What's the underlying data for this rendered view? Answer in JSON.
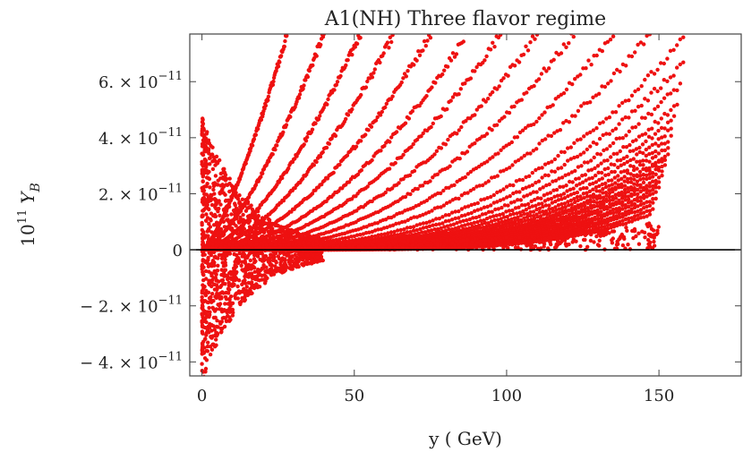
{
  "chart_data": {
    "type": "scatter",
    "title": "A1(NH) Three flavor regime",
    "xlabel": "y ( GeV)",
    "ylabel": {
      "prefix": "10",
      "prefix_exp": "11",
      "symbol": "Y",
      "symbol_sub": "B"
    },
    "xlim": [
      -4,
      177
    ],
    "ylim": [
      -4.5e-11,
      7.7e-11
    ],
    "x_ticks": [
      {
        "value": 0,
        "label": "0"
      },
      {
        "value": 50,
        "label": "50"
      },
      {
        "value": 100,
        "label": "100"
      },
      {
        "value": 150,
        "label": "150"
      }
    ],
    "y_ticks": [
      {
        "value": -4e-11,
        "mant": "− 4. × 10",
        "exp": "−11"
      },
      {
        "value": -2e-11,
        "mant": "− 2. × 10",
        "exp": "−11"
      },
      {
        "value": 0,
        "mant": "0",
        "exp": ""
      },
      {
        "value": 2e-11,
        "mant": "2. × 10",
        "exp": "−11"
      },
      {
        "value": 4e-11,
        "mant": "4. × 10",
        "exp": "−11"
      },
      {
        "value": 6e-11,
        "mant": "6. × 10",
        "exp": "−11"
      }
    ],
    "grid": false,
    "zero_line": true,
    "series": [
      {
        "color": "#ee1111",
        "bands": [
          {
            "end_x": 28,
            "end_y": 7.7e-11
          },
          {
            "end_x": 40,
            "end_y": 7.7e-11
          },
          {
            "end_x": 52,
            "end_y": 7.7e-11
          },
          {
            "end_x": 63,
            "end_y": 7.7e-11
          },
          {
            "end_x": 75,
            "end_y": 7.7e-11
          },
          {
            "end_x": 87,
            "end_y": 7.7e-11
          },
          {
            "end_x": 98,
            "end_y": 7.7e-11
          },
          {
            "end_x": 110,
            "end_y": 7.7e-11
          },
          {
            "end_x": 122,
            "end_y": 7.7e-11
          },
          {
            "end_x": 135,
            "end_y": 7.7e-11
          },
          {
            "end_x": 147,
            "end_y": 7.7e-11
          },
          {
            "end_x": 158,
            "end_y": 7.5e-11
          },
          {
            "end_x": 158,
            "end_y": 6.7e-11
          },
          {
            "end_x": 157,
            "end_y": 5.9e-11
          },
          {
            "end_x": 156,
            "end_y": 5.2e-11
          },
          {
            "end_x": 155,
            "end_y": 4.7e-11
          },
          {
            "end_x": 154,
            "end_y": 4.3e-11
          },
          {
            "end_x": 154,
            "end_y": 4e-11
          },
          {
            "end_x": 153,
            "end_y": 3.7e-11
          },
          {
            "end_x": 153,
            "end_y": 3.45e-11
          },
          {
            "end_x": 152,
            "end_y": 3.25e-11
          },
          {
            "end_x": 152,
            "end_y": 3.05e-11
          },
          {
            "end_x": 151,
            "end_y": 2.85e-11
          },
          {
            "end_x": 151,
            "end_y": 2.65e-11
          },
          {
            "end_x": 150,
            "end_y": 2.45e-11
          },
          {
            "end_x": 150,
            "end_y": 2.25e-11
          },
          {
            "end_x": 149,
            "end_y": 2.05e-11
          },
          {
            "end_x": 149,
            "end_y": 1.85e-11
          },
          {
            "end_x": 148,
            "end_y": 1.65e-11
          },
          {
            "end_x": 148,
            "end_y": 1.45e-11
          },
          {
            "end_x": 147,
            "end_y": 1.25e-11
          }
        ]
      }
    ]
  }
}
